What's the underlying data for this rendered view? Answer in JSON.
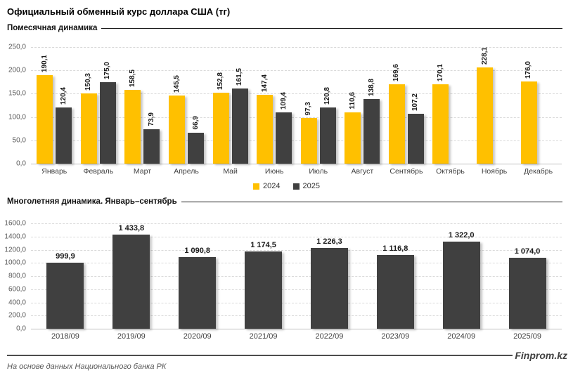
{
  "page": {
    "title": "Официальный обменный курс доллара США (тг)"
  },
  "colors": {
    "series_2024": "#FFC000",
    "series_2025": "#404040",
    "gridline": "#D9D9D9",
    "axis_line": "#BFBFBF"
  },
  "section_monthly": {
    "header": "Помесячная динамика"
  },
  "section_yearly": {
    "header": "Многолетняя динамика. Январь–сентябрь"
  },
  "footer": {
    "source": "На основе данных Национального банка РК",
    "brand": "Finprom.kz"
  },
  "chart_data": [
    {
      "type": "bar",
      "title": "Помесячная динамика",
      "categories": [
        "Январь",
        "Февраль",
        "Март",
        "Апрель",
        "Май",
        "Июнь",
        "Июль",
        "Август",
        "Сентябрь",
        "Октябрь",
        "Ноябрь",
        "Декабрь"
      ],
      "series": [
        {
          "name": "2024",
          "color": "#FFC000",
          "values": [
            190.1,
            150.3,
            158.5,
            145.5,
            152.8,
            147.4,
            97.3,
            110.6,
            169.6,
            170.1,
            228.1,
            176.0
          ],
          "labels": [
            "190,1",
            "150,3",
            "158,5",
            "145,5",
            "152,8",
            "147,4",
            "97,3",
            "110,6",
            "169,6",
            "170,1",
            "228,1",
            "176,0"
          ]
        },
        {
          "name": "2025",
          "color": "#404040",
          "values": [
            120.4,
            175.0,
            73.9,
            66.9,
            161.5,
            109.4,
            120.8,
            138.8,
            107.2,
            null,
            null,
            null
          ],
          "labels": [
            "120,4",
            "175,0",
            "73,9",
            "66,9",
            "161,5",
            "109,4",
            "120,8",
            "138,8",
            "107,2",
            null,
            null,
            null
          ]
        }
      ],
      "ylim": [
        0,
        250
      ],
      "ytick_labels": [
        "250,0",
        "200,0",
        "150,0",
        "100,0",
        "50,0",
        "0,0"
      ],
      "grid": true,
      "legend_position": "bottom"
    },
    {
      "type": "bar",
      "title": "Многолетняя динамика. Январь–сентябрь",
      "categories": [
        "2018/09",
        "2019/09",
        "2020/09",
        "2021/09",
        "2022/09",
        "2023/09",
        "2024/09",
        "2025/09"
      ],
      "series": [
        {
          "name": "",
          "color": "#404040",
          "values": [
            999.9,
            1433.8,
            1090.8,
            1174.5,
            1226.3,
            1116.8,
            1322.0,
            1074.0
          ],
          "labels": [
            "999,9",
            "1 433,8",
            "1 090,8",
            "1 174,5",
            "1 226,3",
            "1 116,8",
            "1 322,0",
            "1 074,0"
          ]
        }
      ],
      "ylim": [
        0,
        1600
      ],
      "ytick_labels": [
        "1600,0",
        "1400,0",
        "1200,0",
        "1000,0",
        "800,0",
        "600,0",
        "400,0",
        "200,0",
        "0,0"
      ],
      "grid": true,
      "legend_position": "none"
    }
  ]
}
